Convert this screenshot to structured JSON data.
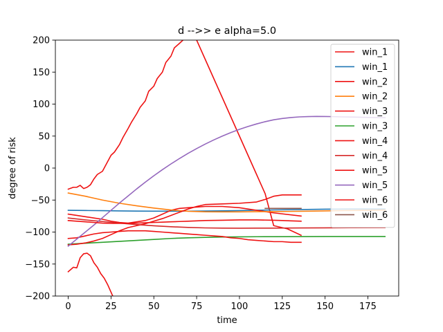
{
  "chart_data": {
    "type": "line",
    "title": "d -->> e  alpha=5.0",
    "xlabel": "time",
    "ylabel": "degree of risk",
    "xlim": [
      -7.5,
      193
    ],
    "ylim": [
      -200,
      200
    ],
    "xticks": [
      "0",
      "25",
      "50",
      "75",
      "100",
      "125",
      "150",
      "175"
    ],
    "xtick_values": [
      0,
      25,
      50,
      75,
      100,
      125,
      150,
      175
    ],
    "yticks": [
      "−200",
      "−150",
      "−100",
      "−50",
      "0",
      "50",
      "100",
      "150",
      "200"
    ],
    "ytick_values": [
      -200,
      -150,
      -100,
      -50,
      0,
      50,
      100,
      150,
      200
    ],
    "grid": false,
    "legend_position": "top-right",
    "series": [
      {
        "name": "win_1",
        "color": "#ee1111",
        "x": [
          0,
          3,
          5,
          7,
          9,
          11,
          13,
          15,
          17,
          20,
          22,
          25,
          27,
          30,
          32,
          35,
          37,
          40,
          42,
          45,
          47,
          50,
          52,
          55,
          57,
          60,
          62,
          65,
          67,
          70,
          72,
          75,
          80,
          85,
          90,
          95,
          100,
          105,
          110,
          115,
          120,
          128,
          136
        ],
        "y": [
          -33,
          -30,
          -30,
          -27,
          -32,
          -30,
          -26,
          -17,
          -10,
          -5,
          5,
          20,
          25,
          37,
          48,
          62,
          72,
          85,
          95,
          105,
          120,
          128,
          140,
          150,
          165,
          175,
          188,
          195,
          200,
          210,
          208,
          200,
          170,
          140,
          110,
          80,
          50,
          20,
          -10,
          -40,
          -90,
          -95,
          -105
        ]
      },
      {
        "name": "win_1",
        "color": "#1f77b4",
        "x": [
          0,
          10,
          20,
          30,
          40,
          50,
          60,
          70,
          80,
          90,
          100,
          110,
          120,
          136,
          150,
          165,
          185
        ],
        "y": [
          -66,
          -66.3,
          -66.6,
          -67,
          -67.2,
          -67.4,
          -67.4,
          -67.3,
          -67.1,
          -66.8,
          -66.4,
          -65.9,
          -65.4,
          -64.8,
          -64.3,
          -64,
          -64
        ]
      },
      {
        "name": "win_2",
        "color": "#ee1111",
        "x": [
          0,
          5,
          10,
          15,
          20,
          25,
          30,
          35,
          40,
          45,
          50,
          55,
          60,
          65,
          70,
          80,
          90,
          100,
          110,
          115,
          120,
          136
        ],
        "y": [
          -72,
          -74,
          -76,
          -78,
          -80,
          -83,
          -85,
          -86,
          -84,
          -82,
          -78,
          -72,
          -66,
          -63,
          -62,
          -60,
          -60,
          -62,
          -66,
          -68,
          -70,
          -75
        ]
      },
      {
        "name": "win_2",
        "color": "#ff7f0e",
        "x": [
          0,
          10,
          20,
          30,
          40,
          50,
          60,
          70,
          80,
          90,
          100,
          110,
          120,
          130,
          140,
          150,
          160,
          170,
          185
        ],
        "y": [
          -39,
          -44,
          -50,
          -55,
          -59,
          -62.5,
          -65.5,
          -67.5,
          -68.3,
          -68.5,
          -68.4,
          -68.2,
          -68,
          -67.7,
          -67.4,
          -67,
          -66.5,
          -66.1,
          -65.6
        ]
      },
      {
        "name": "win_3",
        "color": "#ee1111",
        "x": [
          0,
          3,
          5,
          7,
          9,
          11,
          13,
          15,
          17,
          19,
          21,
          23,
          25,
          26
        ],
        "y": [
          -162,
          -155,
          -156,
          -140,
          -134,
          -133,
          -137,
          -148,
          -155,
          -165,
          -172,
          -182,
          -194,
          -200
        ]
      },
      {
        "name": "win_3",
        "color": "#2ca02c",
        "x": [
          0,
          10,
          20,
          30,
          40,
          50,
          60,
          70,
          80,
          90,
          100,
          110,
          120,
          136,
          150,
          165,
          185
        ],
        "y": [
          -119,
          -117.5,
          -116,
          -114.5,
          -113,
          -111.5,
          -110,
          -109,
          -108.3,
          -107.8,
          -107.5,
          -107.3,
          -107.2,
          -107.1,
          -107,
          -107,
          -107
        ]
      },
      {
        "name": "win_4",
        "color": "#ee1111",
        "x": [
          0,
          5,
          10,
          15,
          20,
          25,
          30,
          35,
          40,
          45,
          50,
          55,
          60,
          65,
          70,
          75,
          80,
          85,
          90,
          95,
          100,
          105,
          110,
          115,
          120,
          125,
          130,
          136
        ],
        "y": [
          -110,
          -109,
          -106,
          -103,
          -101,
          -100,
          -99,
          -98,
          -98,
          -98,
          -99,
          -100,
          -101,
          -102,
          -103,
          -104,
          -105,
          -106,
          -107,
          -109,
          -110,
          -112,
          -113,
          -114,
          -115,
          -115,
          -116,
          -116
        ]
      },
      {
        "name": "win_4",
        "color": "#d62728",
        "x": [
          0,
          10,
          20,
          30,
          40,
          50,
          60,
          70,
          80,
          90,
          100,
          110,
          120,
          136,
          150,
          165,
          185
        ],
        "y": [
          -78,
          -81,
          -83.5,
          -86,
          -88.3,
          -90.2,
          -91.7,
          -92.8,
          -93.5,
          -93.9,
          -94,
          -93.9,
          -93.8,
          -93.6,
          -93.4,
          -93.2,
          -93
        ]
      },
      {
        "name": "win_5",
        "color": "#ee1111",
        "x": [
          0,
          5,
          10,
          15,
          20,
          25,
          30,
          35,
          40,
          45,
          50,
          55,
          60,
          65,
          70,
          75,
          80,
          90,
          100,
          110,
          115,
          120,
          125,
          130,
          136
        ],
        "y": [
          -120,
          -119,
          -117,
          -114,
          -110,
          -104,
          -98,
          -93,
          -90,
          -87,
          -83,
          -79,
          -74,
          -69,
          -64,
          -60,
          -57,
          -56,
          -55,
          -53,
          -49,
          -44,
          -42,
          -42,
          -42
        ]
      },
      {
        "name": "win_5",
        "color": "#9467bd",
        "x": [
          0,
          5,
          10,
          15,
          20,
          25,
          30,
          35,
          40,
          45,
          50,
          55,
          60,
          65,
          70,
          75,
          80,
          85,
          90,
          95,
          100,
          105,
          110,
          115,
          120,
          125,
          130,
          135,
          140,
          145,
          150,
          155,
          160,
          165,
          170,
          175,
          180,
          185
        ],
        "y": [
          -122,
          -111,
          -100,
          -89,
          -77.5,
          -66,
          -54.5,
          -43.5,
          -32.5,
          -22,
          -12,
          -2.5,
          6.5,
          15,
          23,
          30.5,
          37.5,
          44,
          50,
          55.5,
          60.5,
          65,
          69,
          72.5,
          75.5,
          77.5,
          79,
          80,
          80.5,
          80.7,
          80.6,
          80.4,
          80,
          79.8,
          79.5,
          79.2,
          79,
          78.8
        ]
      },
      {
        "name": "win_6",
        "color": "#ee1111",
        "x": [
          0,
          5,
          10,
          15,
          20,
          25,
          30,
          35,
          40,
          45,
          50,
          55,
          60,
          65,
          70,
          75,
          80,
          90,
          100,
          110,
          120,
          125,
          130,
          136
        ],
        "y": [
          -82,
          -83,
          -84,
          -85,
          -86,
          -86.5,
          -86.5,
          -86.3,
          -86,
          -85.5,
          -85,
          -84.5,
          -84,
          -83.5,
          -83,
          -82.5,
          -82,
          -81.5,
          -81,
          -81,
          -81.5,
          -82,
          -82.5,
          -83
        ]
      },
      {
        "name": "win_6",
        "color": "#8c564b",
        "x": [
          115,
          120,
          125,
          130,
          136
        ],
        "y": [
          -63,
          -63,
          -63,
          -63,
          -63
        ]
      }
    ]
  }
}
